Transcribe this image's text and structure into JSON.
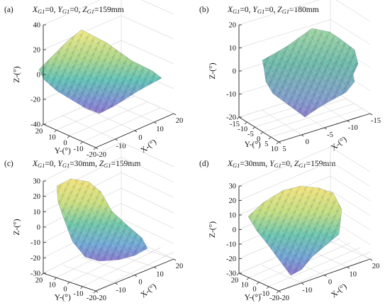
{
  "chart_data": [
    {
      "type": "surface3d",
      "panel_label": "(a)",
      "title": "XG1=0, YG1=0, ZG1=159mm",
      "title_parts": [
        [
          "X",
          "G1",
          "=0, "
        ],
        [
          "Y",
          "G1",
          "=0, "
        ],
        [
          "Z",
          "G1",
          "=159mm"
        ]
      ],
      "xlabel": "X-(°)",
      "ylabel": "Y-(°)",
      "zlabel": "Z-(°)",
      "zlim": [
        -40,
        40
      ],
      "z_ticks": [
        "40",
        "20",
        "0",
        "-20",
        "-40"
      ],
      "y_ticks": [
        "20",
        "10",
        "0",
        "-10",
        "-20"
      ],
      "x_ticks": [
        "-20",
        "-10",
        "0",
        "10",
        "20"
      ],
      "surface": "diamond"
    },
    {
      "type": "surface3d",
      "panel_label": "(b)",
      "title": "XG1=0, YG1=0, ZG1=180mm",
      "title_parts": [
        [
          "X",
          "G1",
          "=0, "
        ],
        [
          "Y",
          "G1",
          "=0, "
        ],
        [
          "Z",
          "G1",
          "=180mm"
        ]
      ],
      "xlabel": "X-(°)",
      "ylabel": "Y-(°)",
      "zlabel": "Z-(°)",
      "zlim": [
        -20,
        20
      ],
      "z_ticks": [
        "20",
        "10",
        "0",
        "-10",
        "-20"
      ],
      "y_ticks": [
        "-15",
        "-10",
        "-5",
        "0",
        "5",
        "10"
      ],
      "x_ticks": [
        "5",
        "0",
        "-5",
        "-10",
        "-15"
      ],
      "surface": "block"
    },
    {
      "type": "surface3d",
      "panel_label": "(c)",
      "title": "XG1=0, YG1=30mm, ZG1=159mm",
      "title_parts": [
        [
          "X",
          "G1",
          "=0, "
        ],
        [
          "Y",
          "G1",
          "=30mm, "
        ],
        [
          "Z",
          "G1",
          "=159mm"
        ]
      ],
      "xlabel": "X-(°)",
      "ylabel": "Y-(°)",
      "zlabel": "Z-(°)",
      "zlim": [
        -30,
        30
      ],
      "z_ticks": [
        "30",
        "20",
        "10",
        "0",
        "-10",
        "-20",
        "-30"
      ],
      "y_ticks": [
        "20",
        "10",
        "0",
        "-10",
        "-20"
      ],
      "x_ticks": [
        "-20",
        "-10",
        "0",
        "10",
        "20"
      ],
      "surface": "tilted"
    },
    {
      "type": "surface3d",
      "panel_label": "(d)",
      "title": "XG1=30mm, YG1=0, ZG1=159mm",
      "title_parts": [
        [
          "X",
          "G1",
          "=30mm, "
        ],
        [
          "Y",
          "G1",
          "=0, "
        ],
        [
          "Z",
          "G1",
          "=159mm"
        ]
      ],
      "xlabel": "X-(°)",
      "ylabel": "Y-(°)",
      "zlabel": "Z-(°)",
      "zlim": [
        -30,
        30
      ],
      "z_ticks": [
        "30",
        "20",
        "10",
        "0",
        "-10",
        "-20",
        "-30"
      ],
      "y_ticks": [
        "20",
        "10",
        "0",
        "-10",
        "-20"
      ],
      "x_ticks": [
        "-20",
        "-10",
        "0",
        "10",
        "20"
      ],
      "surface": "kite"
    }
  ]
}
